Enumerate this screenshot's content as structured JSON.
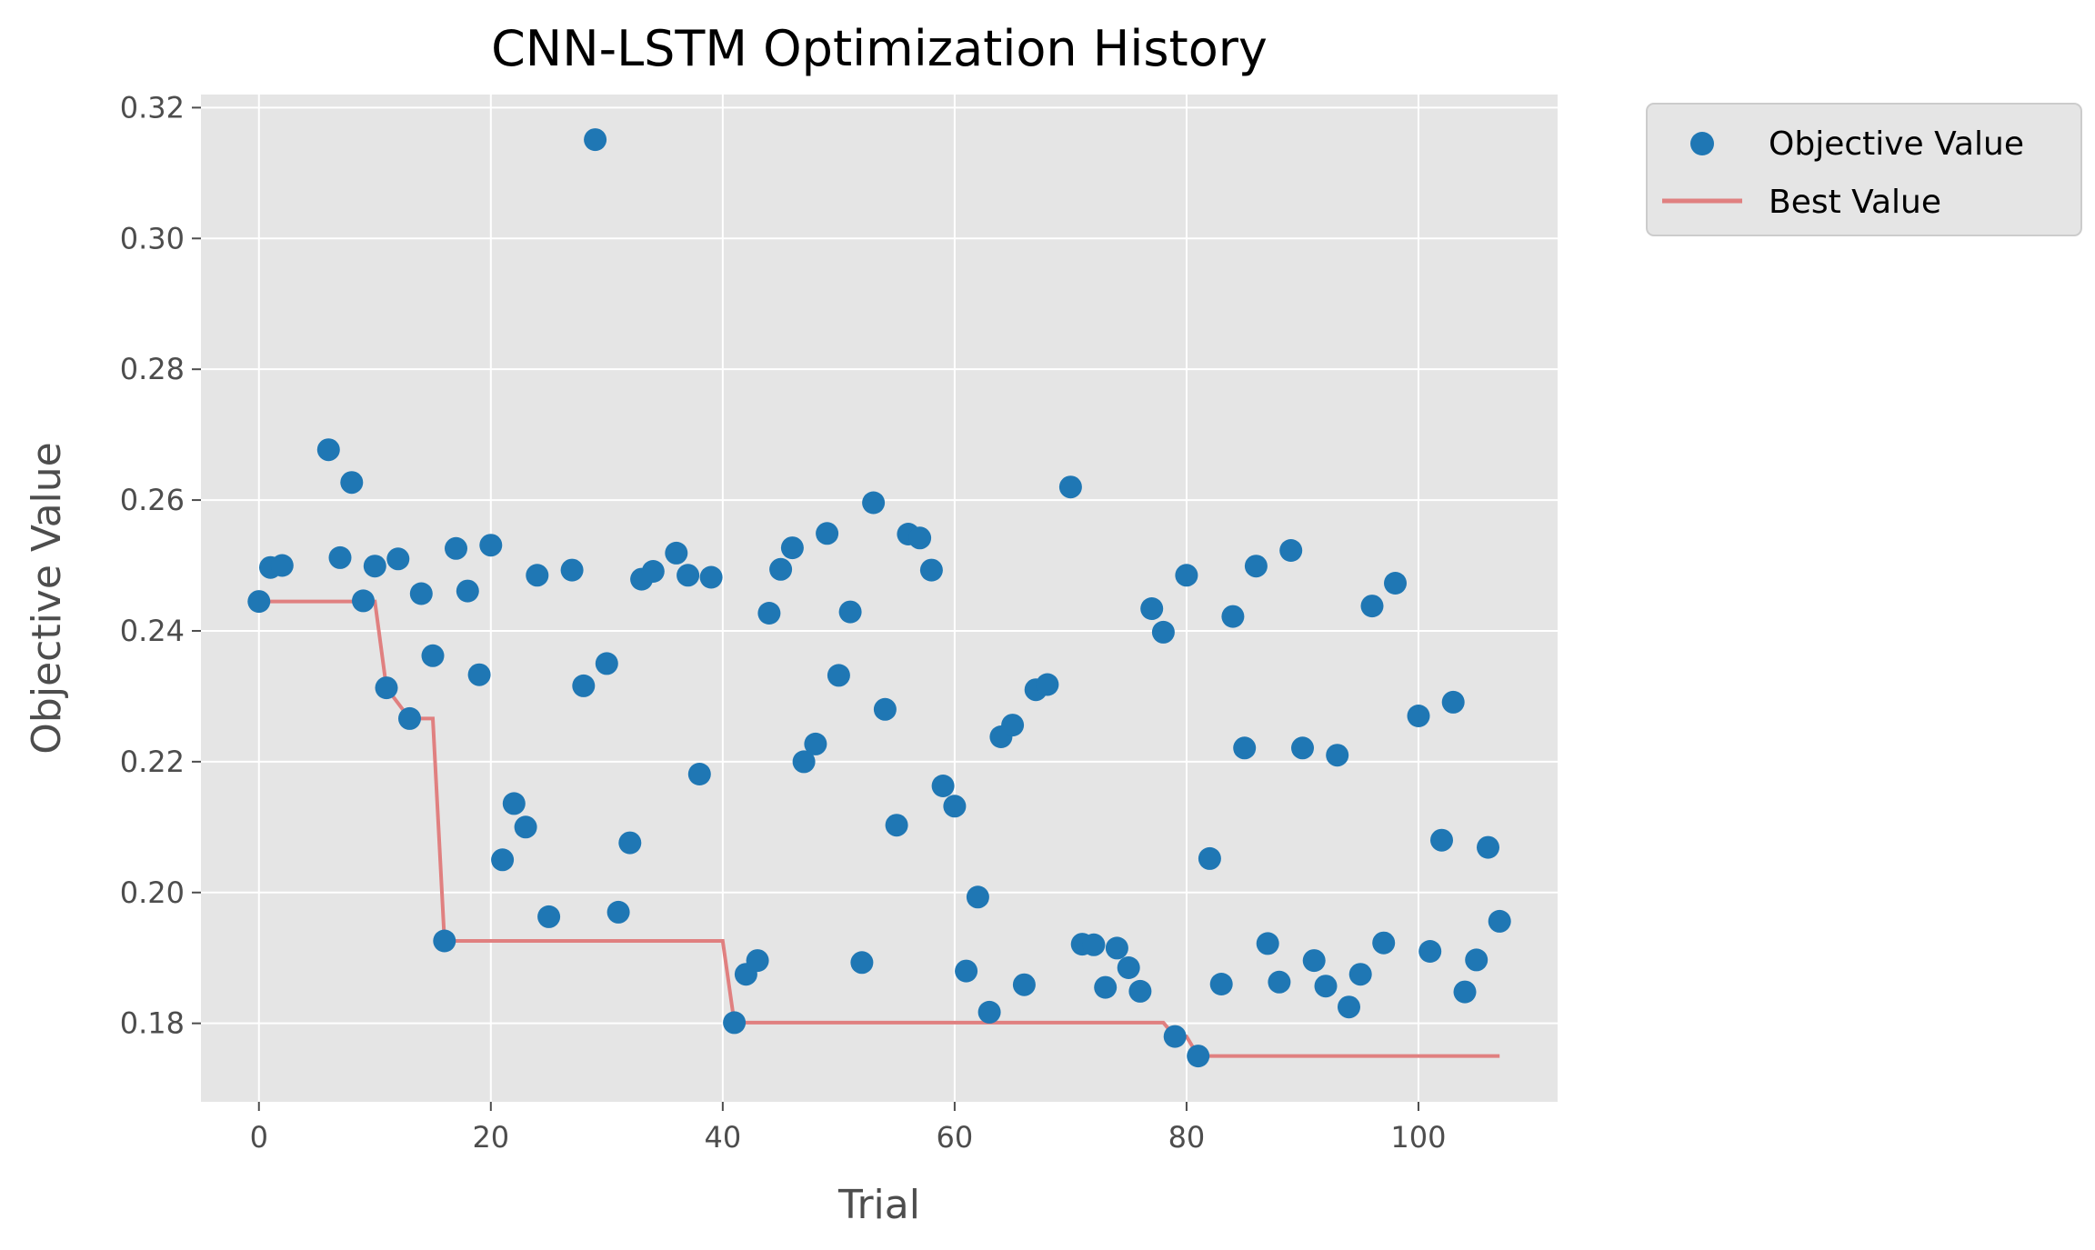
{
  "chart_data": {
    "type": "scatter",
    "title": "CNN-LSTM Optimization History",
    "xlabel": "Trial",
    "ylabel": "Objective Value",
    "xlim": [
      -5,
      112
    ],
    "ylim": [
      0.168,
      0.322
    ],
    "xticks": [
      0,
      20,
      40,
      60,
      80,
      100
    ],
    "yticks": [
      0.18,
      0.2,
      0.22,
      0.24,
      0.26,
      0.28,
      0.3,
      0.32
    ],
    "ytick_labels": [
      "0.18",
      "0.20",
      "0.22",
      "0.24",
      "0.26",
      "0.28",
      "0.30",
      "0.32"
    ],
    "grid": true,
    "legend_position": "outside-top-right",
    "colors": {
      "scatter": "#1f77b4",
      "best_line": "#e08080",
      "plot_bg": "#e5e5e5",
      "grid": "#ffffff"
    },
    "series": [
      {
        "name": "Objective Value",
        "kind": "scatter",
        "x": [
          0,
          1,
          2,
          6,
          7,
          8,
          9,
          10,
          11,
          12,
          13,
          14,
          15,
          16,
          17,
          18,
          19,
          20,
          21,
          22,
          23,
          24,
          25,
          27,
          28,
          29,
          30,
          31,
          32,
          33,
          34,
          36,
          37,
          38,
          39,
          41,
          42,
          43,
          44,
          45,
          46,
          47,
          48,
          49,
          50,
          51,
          52,
          53,
          54,
          55,
          56,
          57,
          58,
          59,
          60,
          61,
          62,
          63,
          64,
          65,
          66,
          67,
          68,
          70,
          71,
          72,
          73,
          74,
          75,
          76,
          77,
          78,
          79,
          80,
          81,
          82,
          83,
          84,
          85,
          86,
          87,
          88,
          89,
          90,
          91,
          92,
          93,
          94,
          95,
          96,
          97,
          98,
          100,
          101,
          102,
          103,
          104,
          105,
          106,
          107
        ],
        "y": [
          0.2445,
          0.2497,
          0.25,
          0.2677,
          0.2512,
          0.2627,
          0.2446,
          0.2499,
          0.2313,
          0.251,
          0.2266,
          0.2457,
          0.2362,
          0.1926,
          0.2526,
          0.2461,
          0.2333,
          0.2531,
          0.205,
          0.2136,
          0.21,
          0.2485,
          0.1963,
          0.2493,
          0.2316,
          0.3151,
          0.235,
          0.197,
          0.2076,
          0.2479,
          0.2491,
          0.2519,
          0.2485,
          0.2181,
          0.2482,
          0.1801,
          0.1875,
          0.1896,
          0.2427,
          0.2494,
          0.2527,
          0.22,
          0.2227,
          0.2549,
          0.2332,
          0.2429,
          0.1893,
          0.2596,
          0.228,
          0.2103,
          0.2548,
          0.2542,
          0.2493,
          0.2163,
          0.2132,
          0.188,
          0.1993,
          0.1817,
          0.2238,
          0.2256,
          0.1859,
          0.231,
          0.2318,
          0.262,
          0.1921,
          0.192,
          0.1855,
          0.1915,
          0.1885,
          0.1849,
          0.2434,
          0.2398,
          0.178,
          0.2485,
          0.175,
          0.2052,
          0.186,
          0.2422,
          0.2221,
          0.2499,
          0.1922,
          0.1863,
          0.2523,
          0.2221,
          0.1896,
          0.1857,
          0.221,
          0.1825,
          0.1875,
          0.2438,
          0.1923,
          0.2473,
          0.227,
          0.191,
          0.208,
          0.2291,
          0.1848,
          0.1897,
          0.2069,
          0.1956
        ]
      },
      {
        "name": "Best Value",
        "kind": "step-line",
        "points": [
          [
            0,
            0.2445
          ],
          [
            10,
            0.2445
          ],
          [
            11,
            0.2313
          ],
          [
            13,
            0.2266
          ],
          [
            15,
            0.2266
          ],
          [
            16,
            0.1926
          ],
          [
            40,
            0.1926
          ],
          [
            41,
            0.1801
          ],
          [
            78,
            0.1801
          ],
          [
            79,
            0.178
          ],
          [
            80,
            0.178
          ],
          [
            81,
            0.175
          ],
          [
            107,
            0.175
          ]
        ]
      }
    ]
  }
}
